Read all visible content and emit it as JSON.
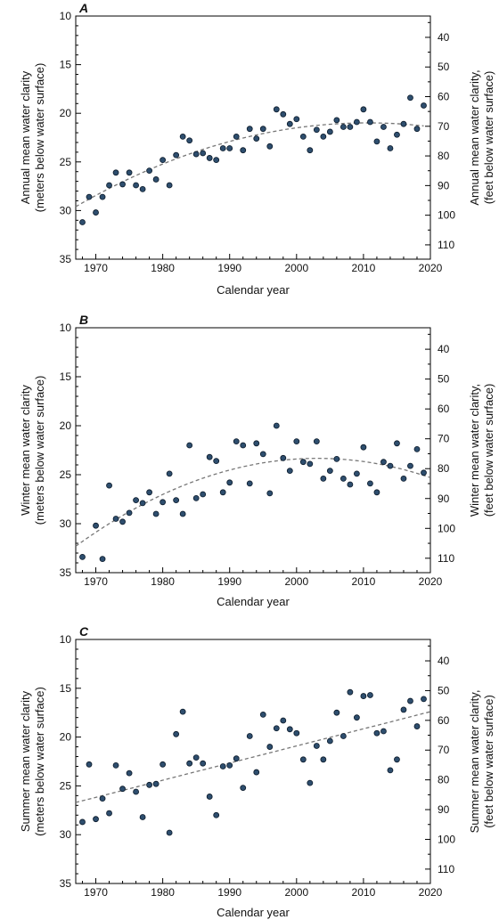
{
  "chart_data": [
    {
      "type": "scatter",
      "panel_label": "A",
      "xlabel": "Calendar year",
      "ylabel_left": [
        "Annual mean water clarity",
        "(meters below water surface)"
      ],
      "ylabel_right": [
        "Annual mean water clarity,",
        "(feet below water surface)"
      ],
      "xlim": [
        1967,
        2020
      ],
      "ylim_left": [
        10,
        35
      ],
      "y_inverted": true,
      "x_ticks": [
        1970,
        1980,
        1990,
        2000,
        2010,
        2020
      ],
      "y_ticks_left": [
        10,
        15,
        20,
        25,
        30,
        35
      ],
      "y_ticks_right": [
        40,
        50,
        60,
        70,
        80,
        90,
        100,
        110
      ],
      "marker_color": "#2e4e6e",
      "trend_color": "#777777",
      "points": [
        [
          1968,
          31.2
        ],
        [
          1969,
          28.6
        ],
        [
          1970,
          30.2
        ],
        [
          1971,
          28.6
        ],
        [
          1972,
          27.4
        ],
        [
          1973,
          26.1
        ],
        [
          1974,
          27.3
        ],
        [
          1975,
          26.1
        ],
        [
          1976,
          27.4
        ],
        [
          1977,
          27.8
        ],
        [
          1978,
          25.9
        ],
        [
          1979,
          26.8
        ],
        [
          1980,
          24.8
        ],
        [
          1981,
          27.4
        ],
        [
          1982,
          24.3
        ],
        [
          1983,
          22.4
        ],
        [
          1984,
          22.8
        ],
        [
          1985,
          24.2
        ],
        [
          1986,
          24.1
        ],
        [
          1987,
          24.6
        ],
        [
          1988,
          24.8
        ],
        [
          1989,
          23.6
        ],
        [
          1990,
          23.6
        ],
        [
          1991,
          22.4
        ],
        [
          1992,
          23.8
        ],
        [
          1993,
          21.6
        ],
        [
          1994,
          22.6
        ],
        [
          1995,
          21.6
        ],
        [
          1996,
          23.4
        ],
        [
          1997,
          19.6
        ],
        [
          1998,
          20.1
        ],
        [
          1999,
          21.1
        ],
        [
          2000,
          20.6
        ],
        [
          2001,
          22.4
        ],
        [
          2002,
          23.8
        ],
        [
          2003,
          21.7
        ],
        [
          2004,
          22.4
        ],
        [
          2005,
          21.9
        ],
        [
          2006,
          20.7
        ],
        [
          2007,
          21.4
        ],
        [
          2008,
          21.4
        ],
        [
          2009,
          20.9
        ],
        [
          2010,
          19.6
        ],
        [
          2011,
          20.9
        ],
        [
          2012,
          22.9
        ],
        [
          2013,
          21.4
        ],
        [
          2014,
          23.6
        ],
        [
          2015,
          22.2
        ],
        [
          2016,
          21.1
        ],
        [
          2017,
          18.4
        ],
        [
          2018,
          21.6
        ],
        [
          2019,
          19.2
        ]
      ],
      "trend": {
        "kind": "quadratic",
        "points": [
          [
            1967,
            29.6
          ],
          [
            1990,
            22.9
          ],
          [
            2009,
            21.0
          ],
          [
            2019,
            21.3
          ]
        ]
      }
    },
    {
      "type": "scatter",
      "panel_label": "B",
      "xlabel": "Calendar year",
      "ylabel_left": [
        "Winter mean water clarity",
        "(meters below water surface)"
      ],
      "ylabel_right": [
        "Winter mean water clarity,",
        "(feet below water surface)"
      ],
      "xlim": [
        1967,
        2020
      ],
      "ylim_left": [
        10,
        35
      ],
      "y_inverted": true,
      "x_ticks": [
        1970,
        1980,
        1990,
        2000,
        2010,
        2020
      ],
      "y_ticks_left": [
        10,
        15,
        20,
        25,
        30,
        35
      ],
      "y_ticks_right": [
        40,
        50,
        60,
        70,
        80,
        90,
        100,
        110
      ],
      "marker_color": "#2e4e6e",
      "trend_color": "#777777",
      "points": [
        [
          1968,
          33.4
        ],
        [
          1970,
          30.2
        ],
        [
          1971,
          33.6
        ],
        [
          1972,
          26.1
        ],
        [
          1973,
          29.5
        ],
        [
          1974,
          29.8
        ],
        [
          1975,
          28.9
        ],
        [
          1976,
          27.6
        ],
        [
          1977,
          27.9
        ],
        [
          1978,
          26.8
        ],
        [
          1979,
          29.0
        ],
        [
          1980,
          27.8
        ],
        [
          1981,
          24.9
        ],
        [
          1982,
          27.6
        ],
        [
          1983,
          29.0
        ],
        [
          1984,
          22.0
        ],
        [
          1985,
          27.4
        ],
        [
          1986,
          27.0
        ],
        [
          1987,
          23.2
        ],
        [
          1988,
          23.6
        ],
        [
          1989,
          26.8
        ],
        [
          1990,
          25.8
        ],
        [
          1991,
          21.6
        ],
        [
          1992,
          22.0
        ],
        [
          1993,
          25.9
        ],
        [
          1994,
          21.8
        ],
        [
          1995,
          22.9
        ],
        [
          1996,
          26.9
        ],
        [
          1997,
          20.0
        ],
        [
          1998,
          23.3
        ],
        [
          1999,
          24.6
        ],
        [
          2000,
          21.6
        ],
        [
          2001,
          23.7
        ],
        [
          2002,
          23.9
        ],
        [
          2003,
          21.6
        ],
        [
          2004,
          25.4
        ],
        [
          2005,
          24.6
        ],
        [
          2006,
          23.4
        ],
        [
          2007,
          25.4
        ],
        [
          2008,
          26.0
        ],
        [
          2009,
          24.9
        ],
        [
          2010,
          22.2
        ],
        [
          2011,
          25.9
        ],
        [
          2012,
          26.8
        ],
        [
          2013,
          23.7
        ],
        [
          2014,
          24.1
        ],
        [
          2015,
          21.8
        ],
        [
          2016,
          25.4
        ],
        [
          2017,
          24.1
        ],
        [
          2018,
          22.4
        ],
        [
          2019,
          24.8
        ]
      ],
      "trend": {
        "kind": "quadratic",
        "points": [
          [
            1967,
            32.3
          ],
          [
            1985,
            25.6
          ],
          [
            2000,
            23.4
          ],
          [
            2020,
            25.3
          ]
        ]
      }
    },
    {
      "type": "scatter",
      "panel_label": "C",
      "xlabel": "Calendar year",
      "ylabel_left": [
        "Summer mean water clarity",
        "(meters below water surface)"
      ],
      "ylabel_right": [
        "Summer mean water clarity,",
        "(feet below water surface)"
      ],
      "xlim": [
        1967,
        2020
      ],
      "ylim_left": [
        10,
        35
      ],
      "y_inverted": true,
      "x_ticks": [
        1970,
        1980,
        1990,
        2000,
        2010,
        2020
      ],
      "y_ticks_left": [
        10,
        15,
        20,
        25,
        30,
        35
      ],
      "y_ticks_right": [
        40,
        50,
        60,
        70,
        80,
        90,
        100,
        110
      ],
      "marker_color": "#2e4e6e",
      "trend_color": "#777777",
      "points": [
        [
          1968,
          28.7
        ],
        [
          1969,
          22.8
        ],
        [
          1970,
          28.4
        ],
        [
          1971,
          26.3
        ],
        [
          1972,
          27.8
        ],
        [
          1973,
          22.9
        ],
        [
          1974,
          25.3
        ],
        [
          1975,
          23.7
        ],
        [
          1976,
          25.6
        ],
        [
          1977,
          28.2
        ],
        [
          1978,
          24.9
        ],
        [
          1979,
          24.8
        ],
        [
          1980,
          22.8
        ],
        [
          1981,
          29.8
        ],
        [
          1982,
          19.7
        ],
        [
          1983,
          17.4
        ],
        [
          1984,
          22.7
        ],
        [
          1985,
          22.1
        ],
        [
          1986,
          22.7
        ],
        [
          1987,
          26.1
        ],
        [
          1988,
          28.0
        ],
        [
          1989,
          23.0
        ],
        [
          1990,
          22.9
        ],
        [
          1991,
          22.2
        ],
        [
          1992,
          25.2
        ],
        [
          1993,
          19.9
        ],
        [
          1994,
          23.6
        ],
        [
          1995,
          17.7
        ],
        [
          1996,
          21.0
        ],
        [
          1997,
          19.1
        ],
        [
          1998,
          18.3
        ],
        [
          1999,
          19.2
        ],
        [
          2000,
          19.6
        ],
        [
          2001,
          22.3
        ],
        [
          2002,
          24.7
        ],
        [
          2003,
          20.9
        ],
        [
          2004,
          22.3
        ],
        [
          2005,
          20.4
        ],
        [
          2006,
          17.5
        ],
        [
          2007,
          19.9
        ],
        [
          2008,
          15.4
        ],
        [
          2009,
          18.0
        ],
        [
          2010,
          15.8
        ],
        [
          2011,
          15.7
        ],
        [
          2012,
          19.6
        ],
        [
          2013,
          19.4
        ],
        [
          2014,
          23.4
        ],
        [
          2015,
          22.3
        ],
        [
          2016,
          17.2
        ],
        [
          2017,
          16.3
        ],
        [
          2018,
          18.9
        ],
        [
          2019,
          16.1
        ]
      ],
      "trend": {
        "kind": "linear",
        "points": [
          [
            1967,
            26.7
          ],
          [
            2020,
            17.4
          ]
        ]
      }
    }
  ]
}
